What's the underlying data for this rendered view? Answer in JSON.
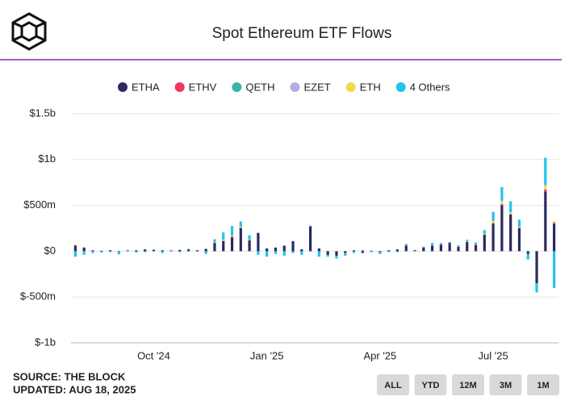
{
  "chart_data": {
    "type": "stacked-bar",
    "title": "Spot Ethereum ETF Flows",
    "source": "SOURCE: THE BLOCK",
    "updated": "UPDATED: AUG 18, 2025",
    "buttons": [
      "ALL",
      "YTD",
      "12M",
      "3M",
      "1M"
    ],
    "ylim": [
      -1000,
      1500
    ],
    "yticks": [
      {
        "value": -1000,
        "label": "$-1b"
      },
      {
        "value": -500,
        "label": "$-500m"
      },
      {
        "value": 0,
        "label": "$0"
      },
      {
        "value": 500,
        "label": "$500m"
      },
      {
        "value": 1000,
        "label": "$1b"
      },
      {
        "value": 1500,
        "label": "$1.5b"
      }
    ],
    "grid": true,
    "legend": "top",
    "categories": [
      null,
      null,
      null,
      null,
      null,
      null,
      null,
      null,
      null,
      "Oct '24",
      null,
      null,
      null,
      null,
      null,
      null,
      null,
      null,
      null,
      null,
      null,
      null,
      "Jan '25",
      null,
      null,
      null,
      null,
      null,
      null,
      null,
      null,
      null,
      null,
      null,
      null,
      "Apr '25",
      null,
      null,
      null,
      null,
      null,
      null,
      null,
      null,
      null,
      null,
      null,
      null,
      "Jul '25",
      null,
      null,
      null,
      null,
      null,
      null,
      null
    ],
    "series": [
      {
        "name": "ETHA",
        "color": "#2b2960",
        "values": [
          60,
          40,
          10,
          5,
          10,
          -5,
          5,
          10,
          20,
          15,
          10,
          5,
          15,
          20,
          10,
          25,
          90,
          110,
          150,
          250,
          120,
          200,
          30,
          40,
          60,
          110,
          20,
          270,
          30,
          -40,
          -50,
          -20,
          10,
          -20,
          5,
          -10,
          10,
          20,
          60,
          10,
          40,
          60,
          70,
          90,
          50,
          100,
          70,
          180,
          300,
          500,
          400,
          250,
          -30,
          -350,
          650,
          300
        ]
      },
      {
        "name": "ETHV",
        "color": "#f0365e",
        "values": [
          5,
          0,
          0,
          0,
          0,
          0,
          0,
          0,
          0,
          0,
          0,
          0,
          0,
          0,
          0,
          0,
          5,
          5,
          10,
          5,
          0,
          0,
          0,
          0,
          0,
          0,
          0,
          0,
          0,
          0,
          0,
          0,
          0,
          0,
          0,
          0,
          0,
          0,
          0,
          0,
          0,
          0,
          0,
          0,
          0,
          0,
          0,
          0,
          10,
          10,
          5,
          5,
          0,
          0,
          20,
          10
        ]
      },
      {
        "name": "QETH",
        "color": "#36b5a5",
        "values": [
          0,
          0,
          0,
          0,
          0,
          0,
          0,
          0,
          0,
          0,
          0,
          0,
          0,
          0,
          0,
          0,
          0,
          0,
          5,
          0,
          0,
          0,
          0,
          0,
          0,
          0,
          0,
          0,
          0,
          0,
          0,
          0,
          0,
          0,
          0,
          0,
          0,
          0,
          0,
          0,
          0,
          0,
          0,
          0,
          0,
          0,
          0,
          0,
          0,
          5,
          0,
          0,
          0,
          0,
          5,
          0
        ]
      },
      {
        "name": "EZET",
        "color": "#b3aee0",
        "values": [
          0,
          0,
          0,
          0,
          0,
          0,
          0,
          0,
          0,
          0,
          0,
          0,
          0,
          0,
          0,
          0,
          0,
          0,
          0,
          0,
          0,
          0,
          0,
          0,
          0,
          0,
          0,
          0,
          0,
          0,
          0,
          0,
          0,
          0,
          0,
          0,
          0,
          0,
          0,
          0,
          0,
          0,
          0,
          0,
          0,
          0,
          0,
          0,
          0,
          5,
          0,
          0,
          0,
          0,
          5,
          0
        ]
      },
      {
        "name": "ETH",
        "color": "#f5d84a",
        "values": [
          10,
          5,
          0,
          0,
          0,
          0,
          0,
          0,
          0,
          0,
          0,
          0,
          0,
          0,
          0,
          0,
          5,
          10,
          10,
          10,
          5,
          5,
          0,
          0,
          0,
          0,
          0,
          0,
          0,
          0,
          0,
          0,
          0,
          0,
          0,
          0,
          0,
          0,
          0,
          0,
          0,
          0,
          0,
          0,
          5,
          5,
          5,
          10,
          20,
          30,
          20,
          10,
          0,
          0,
          40,
          20
        ]
      },
      {
        "name": "4 Others",
        "color": "#22c3ee",
        "values": [
          -60,
          -40,
          -20,
          -15,
          -10,
          -30,
          10,
          -15,
          -10,
          5,
          -20,
          10,
          -10,
          5,
          -5,
          -30,
          30,
          80,
          100,
          60,
          50,
          -40,
          -60,
          -30,
          -50,
          -20,
          -40,
          10,
          -60,
          -20,
          -30,
          -30,
          -20,
          15,
          -10,
          -20,
          -10,
          -10,
          20,
          5,
          10,
          30,
          20,
          10,
          10,
          20,
          20,
          40,
          100,
          150,
          120,
          80,
          -60,
          -100,
          300,
          -400
        ]
      }
    ]
  }
}
